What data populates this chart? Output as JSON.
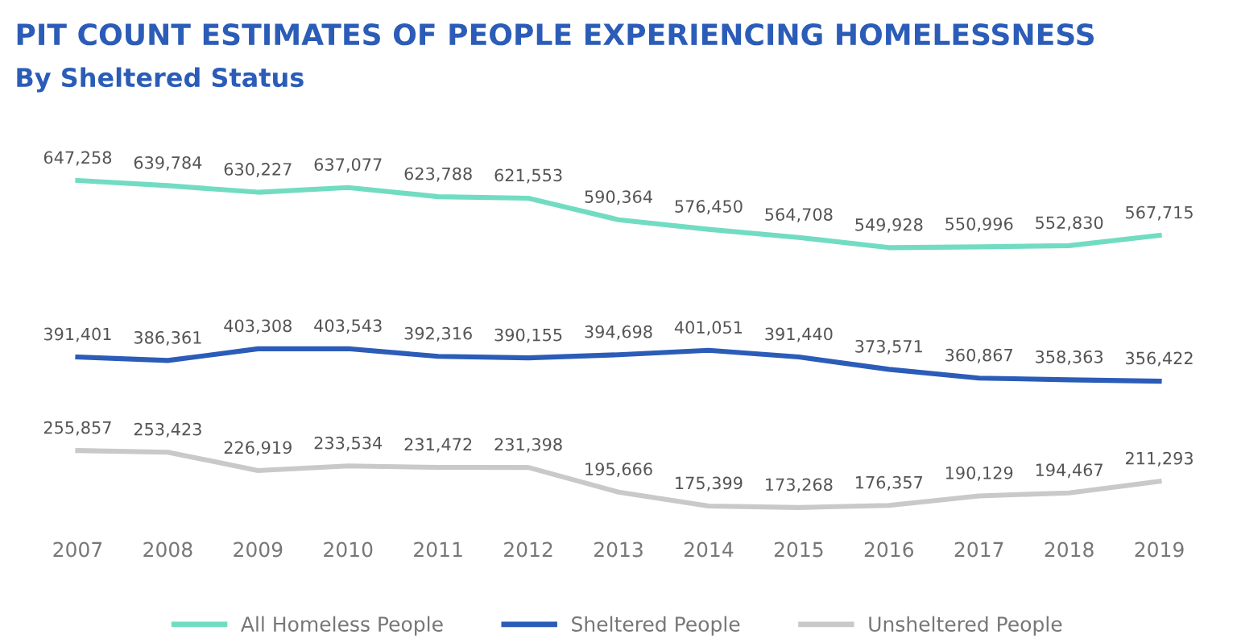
{
  "chart_data": {
    "type": "line",
    "title": "PIT COUNT ESTIMATES OF PEOPLE EXPERIENCING HOMELESSNESS",
    "subtitle": "By Sheltered Status",
    "categories": [
      "2007",
      "2008",
      "2009",
      "2010",
      "2011",
      "2012",
      "2013",
      "2014",
      "2015",
      "2016",
      "2017",
      "2018",
      "2019"
    ],
    "series": [
      {
        "name": "All Homeless People",
        "color": "#72dcc2",
        "values": [
          647258,
          639784,
          630227,
          637077,
          623788,
          621553,
          590364,
          576450,
          564708,
          549928,
          550996,
          552830,
          567715
        ],
        "value_labels": [
          "647,258",
          "639,784",
          "630,227",
          "637,077",
          "623,788",
          "621,553",
          "590,364",
          "576,450",
          "564,708",
          "549,928",
          "550,996",
          "552,830",
          "567,715"
        ]
      },
      {
        "name": "Sheltered People",
        "color": "#2b5cb8",
        "values": [
          391401,
          386361,
          403308,
          403543,
          392316,
          390155,
          394698,
          401051,
          391440,
          373571,
          360867,
          358363,
          356422
        ],
        "value_labels": [
          "391,401",
          "386,361",
          "403,308",
          "403,543",
          "392,316",
          "390,155",
          "394,698",
          "401,051",
          "391,440",
          "373,571",
          "360,867",
          "358,363",
          "356,422"
        ]
      },
      {
        "name": "Unsheltered People",
        "color": "#c9c9c9",
        "values": [
          255857,
          253423,
          226919,
          233534,
          231472,
          231398,
          195666,
          175399,
          173268,
          176357,
          190129,
          194467,
          211293
        ],
        "value_labels": [
          "255,857",
          "253,423",
          "226,919",
          "233,534",
          "231,472",
          "231,398",
          "195,666",
          "175,399",
          "173,268",
          "176,357",
          "190,129",
          "194,467",
          "211,293"
        ]
      }
    ],
    "legend": "bottom",
    "marker": "none",
    "line_style": "solid",
    "tick_labels": "x"
  }
}
